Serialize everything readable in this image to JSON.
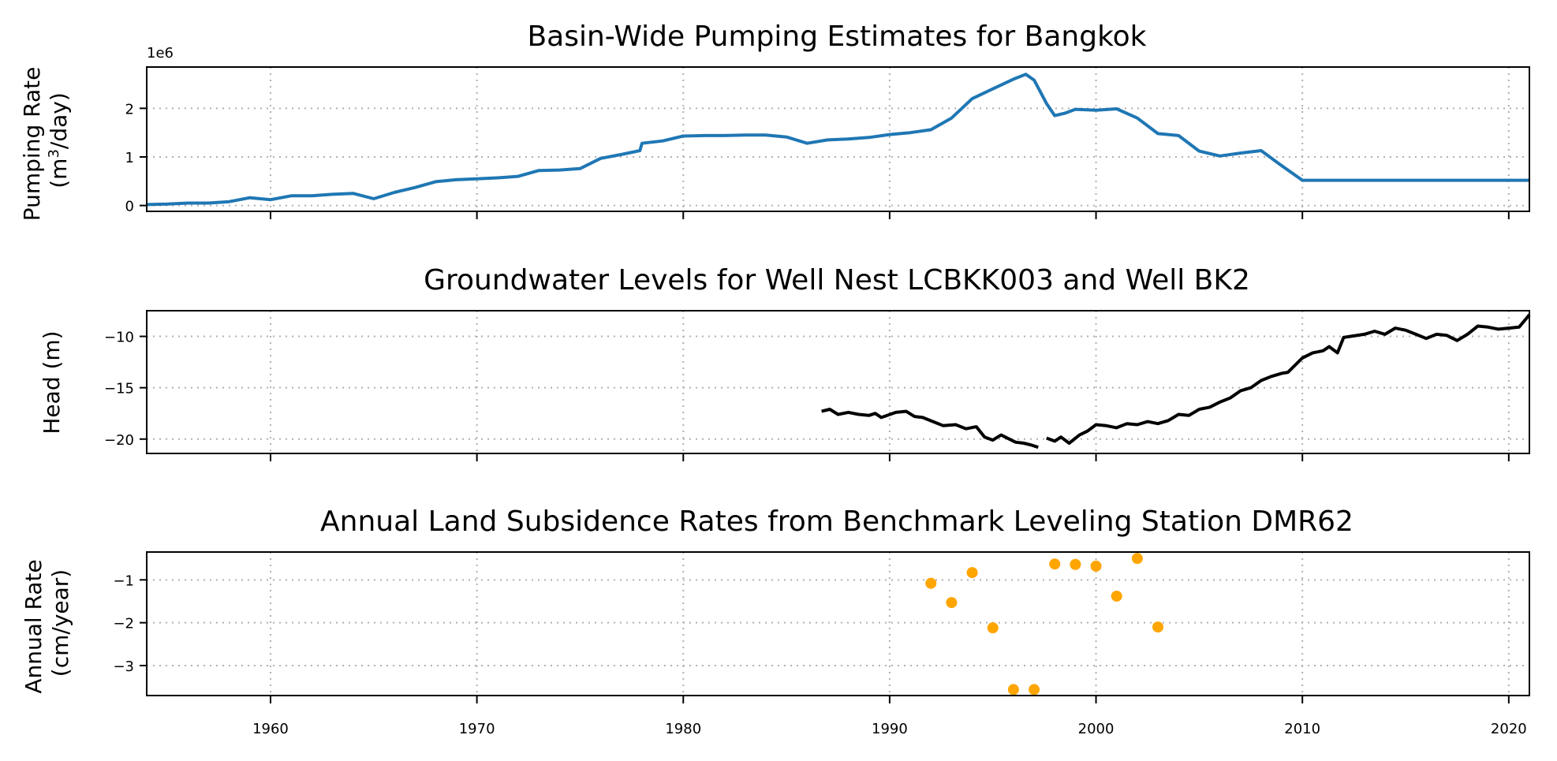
{
  "chart_data": [
    {
      "type": "line",
      "title": "Basin-Wide Pumping Estimates for Bangkok",
      "ylabel_line1": "Pumping Rate",
      "ylabel_line2_prefix": "(m",
      "ylabel_line2_sup": "3",
      "ylabel_line2_suffix": "/day)",
      "offset_text": "1e6",
      "xlim": [
        1954,
        2021
      ],
      "ylim": [
        -0.12,
        2.85
      ],
      "yticks": [
        0,
        1,
        2
      ],
      "ytick_labels": [
        "0",
        "1",
        "2"
      ],
      "grid": true,
      "color": "#1f77b4",
      "series": [
        {
          "x": [
            1954,
            1955,
            1956,
            1957,
            1958,
            1959,
            1960,
            1961,
            1962,
            1963,
            1964,
            1965,
            1966,
            1967,
            1968,
            1969,
            1970,
            1971,
            1972,
            1973,
            1974,
            1975,
            1976,
            1977,
            1977.9,
            1978,
            1979,
            1980,
            1981,
            1982,
            1983,
            1984,
            1985,
            1986,
            1987,
            1988,
            1989,
            1990,
            1991,
            1992,
            1993,
            1994,
            1995,
            1996,
            1996.6,
            1997,
            1997.6,
            1998,
            1998.5,
            1999,
            2000,
            2001,
            2002,
            2003,
            2004,
            2005,
            2006,
            2007,
            2008,
            2009,
            2010,
            2015,
            2021
          ],
          "y": [
            0.02,
            0.03,
            0.05,
            0.05,
            0.08,
            0.16,
            0.12,
            0.2,
            0.2,
            0.23,
            0.25,
            0.14,
            0.27,
            0.37,
            0.49,
            0.53,
            0.55,
            0.57,
            0.6,
            0.72,
            0.73,
            0.76,
            0.97,
            1.05,
            1.13,
            1.28,
            1.33,
            1.43,
            1.44,
            1.44,
            1.45,
            1.45,
            1.41,
            1.28,
            1.35,
            1.37,
            1.4,
            1.46,
            1.5,
            1.56,
            1.8,
            2.2,
            2.4,
            2.6,
            2.7,
            2.58,
            2.1,
            1.85,
            1.9,
            1.98,
            1.96,
            1.99,
            1.8,
            1.48,
            1.44,
            1.12,
            1.02,
            1.08,
            1.13,
            0.82,
            0.52,
            0.52,
            0.52
          ]
        }
      ]
    },
    {
      "type": "line",
      "title": "Groundwater Levels for Well Nest LCBKK003 and Well BK2",
      "ylabel": "Head (m)",
      "xlim": [
        1954,
        2021
      ],
      "ylim": [
        -21.4,
        -7.5
      ],
      "yticks": [
        -10,
        -15,
        -20
      ],
      "ytick_labels": [
        "−10",
        "−15",
        "−20"
      ],
      "grid": true,
      "color": "#000000",
      "series": [
        {
          "x": [
            1986.7,
            1987.1,
            1987.5,
            1988,
            1988.5,
            1989,
            1989.3,
            1989.6,
            1990.3,
            1990.8,
            1991.2,
            1991.6,
            1992.1,
            1992.6,
            1993.2,
            1993.7,
            1994.2,
            1994.6,
            1995,
            1995.4,
            1995.8,
            1996.1,
            1996.5,
            1996.9,
            1997.2
          ],
          "y": [
            -17.3,
            -17.1,
            -17.6,
            -17.4,
            -17.6,
            -17.7,
            -17.5,
            -17.9,
            -17.4,
            -17.3,
            -17.8,
            -17.9,
            -18.3,
            -18.7,
            -18.6,
            -19.0,
            -18.8,
            -19.8,
            -20.1,
            -19.6,
            -20.0,
            -20.3,
            -20.4,
            -20.6,
            -20.8
          ]
        },
        {
          "x": [
            1997.6,
            1998,
            1998.3,
            1998.7,
            1999.2,
            1999.6,
            2000,
            2000.5,
            2001,
            2001.5,
            2002,
            2002.5,
            2003,
            2003.5,
            2004,
            2004.5,
            2005,
            2005.5,
            2006,
            2006.5,
            2007,
            2007.5,
            2008,
            2008.5,
            2009,
            2009.3,
            2010,
            2010.5,
            2011,
            2011.3,
            2011.7,
            2012,
            2013,
            2013.5,
            2014,
            2014.5,
            2015,
            2015.5,
            2016,
            2016.5,
            2017,
            2017.5,
            2018,
            2018.5,
            2019,
            2019.5,
            2020,
            2020.5,
            2021
          ],
          "y": [
            -19.9,
            -20.2,
            -19.8,
            -20.4,
            -19.6,
            -19.2,
            -18.6,
            -18.7,
            -18.9,
            -18.5,
            -18.6,
            -18.3,
            -18.5,
            -18.2,
            -17.6,
            -17.7,
            -17.1,
            -16.9,
            -16.4,
            -16.0,
            -15.3,
            -15.0,
            -14.3,
            -13.9,
            -13.6,
            -13.5,
            -12.1,
            -11.6,
            -11.4,
            -11.0,
            -11.6,
            -10.1,
            -9.8,
            -9.5,
            -9.8,
            -9.2,
            -9.4,
            -9.8,
            -10.2,
            -9.8,
            -9.9,
            -10.4,
            -9.8,
            -9.0,
            -9.1,
            -9.3,
            -9.2,
            -9.1,
            -7.9
          ]
        }
      ]
    },
    {
      "type": "scatter",
      "title": "Annual Land Subsidence Rates from Benchmark Leveling Station DMR62",
      "ylabel_line1": "Annual Rate",
      "ylabel_line2": "(cm/year)",
      "xlim": [
        1954,
        2021
      ],
      "ylim": [
        -3.7,
        -0.35
      ],
      "yticks": [
        -1,
        -2,
        -3
      ],
      "ytick_labels": [
        "−1",
        "−2",
        "−3"
      ],
      "grid": true,
      "color": "#ffa500",
      "series": [
        {
          "x": [
            1992,
            1993,
            1994,
            1995,
            1996,
            1997,
            1998,
            1999,
            2000,
            2001,
            2002,
            2003
          ],
          "y": [
            -1.08,
            -1.53,
            -0.83,
            -2.12,
            -3.56,
            -3.56,
            -0.63,
            -0.64,
            -0.68,
            -1.38,
            -0.5,
            -2.1
          ]
        }
      ]
    }
  ],
  "shared_x": {
    "ticks": [
      1960,
      1970,
      1980,
      1990,
      2000,
      2010,
      2020
    ],
    "tick_labels": [
      "1960",
      "1970",
      "1980",
      "1990",
      "2000",
      "2010",
      "2020"
    ]
  }
}
